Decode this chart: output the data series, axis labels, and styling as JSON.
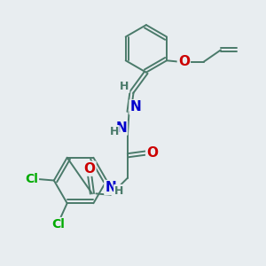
{
  "background_color": "#e8edf0",
  "bond_color": "#4a7a6a",
  "atom_colors": {
    "N": "#0000cc",
    "O": "#cc0000",
    "Cl": "#00aa00",
    "H": "#4a7a6a",
    "C": "#4a7a6a"
  }
}
